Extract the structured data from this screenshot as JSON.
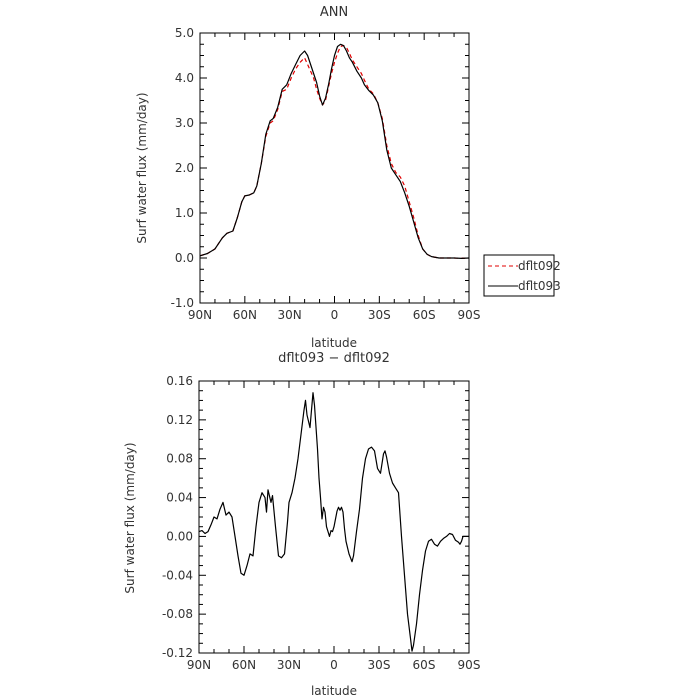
{
  "chart_data": [
    {
      "type": "line",
      "title": "ANN",
      "xlabel": "latitude",
      "ylabel": "Surf water flux (mm/day)",
      "xlim": [
        90,
        -90
      ],
      "ylim": [
        -1.0,
        5.0
      ],
      "x_ticks": [
        90,
        60,
        30,
        0,
        -30,
        -60,
        -90
      ],
      "x_tick_labels": [
        "90N",
        "60N",
        "30N",
        "0",
        "30S",
        "60S",
        "90S"
      ],
      "y_ticks": [
        -1.0,
        0.0,
        1.0,
        2.0,
        3.0,
        4.0,
        5.0
      ],
      "y_tick_labels": [
        "-1.0",
        "0.0",
        "1.0",
        "2.0",
        "3.0",
        "4.0",
        "5.0"
      ],
      "legend_position": "right",
      "series": [
        {
          "name": "dflt092",
          "color": "#e00000",
          "dash": "dashed",
          "points": [
            [
              90,
              0.05
            ],
            [
              85,
              0.1
            ],
            [
              80,
              0.2
            ],
            [
              75,
              0.45
            ],
            [
              72,
              0.55
            ],
            [
              68,
              0.6
            ],
            [
              65,
              0.9
            ],
            [
              62,
              1.25
            ],
            [
              60,
              1.38
            ],
            [
              57,
              1.4
            ],
            [
              54,
              1.45
            ],
            [
              52,
              1.6
            ],
            [
              49,
              2.1
            ],
            [
              46,
              2.7
            ],
            [
              43,
              3.0
            ],
            [
              41,
              3.05
            ],
            [
              38,
              3.3
            ],
            [
              35,
              3.7
            ],
            [
              32,
              3.75
            ],
            [
              29,
              4.0
            ],
            [
              26,
              4.2
            ],
            [
              23,
              4.35
            ],
            [
              20,
              4.45
            ],
            [
              18,
              4.3
            ],
            [
              16,
              4.15
            ],
            [
              14,
              4.0
            ],
            [
              12,
              3.75
            ],
            [
              10,
              3.55
            ],
            [
              8,
              3.4
            ],
            [
              6,
              3.5
            ],
            [
              4,
              3.8
            ],
            [
              2,
              4.1
            ],
            [
              0,
              4.35
            ],
            [
              -2,
              4.55
            ],
            [
              -4,
              4.7
            ],
            [
              -6,
              4.72
            ],
            [
              -8,
              4.68
            ],
            [
              -10,
              4.55
            ],
            [
              -12,
              4.4
            ],
            [
              -15,
              4.25
            ],
            [
              -18,
              4.1
            ],
            [
              -20,
              3.95
            ],
            [
              -23,
              3.75
            ],
            [
              -26,
              3.65
            ],
            [
              -29,
              3.45
            ],
            [
              -32,
              3.1
            ],
            [
              -35,
              2.5
            ],
            [
              -38,
              2.1
            ],
            [
              -41,
              1.9
            ],
            [
              -44,
              1.8
            ],
            [
              -47,
              1.6
            ],
            [
              -50,
              1.25
            ],
            [
              -53,
              0.9
            ],
            [
              -56,
              0.5
            ],
            [
              -59,
              0.2
            ],
            [
              -62,
              0.08
            ],
            [
              -65,
              0.03
            ],
            [
              -70,
              0.0
            ],
            [
              -75,
              0.0
            ],
            [
              -80,
              0.0
            ],
            [
              -85,
              -0.01
            ],
            [
              -90,
              0.0
            ]
          ]
        },
        {
          "name": "dflt093",
          "color": "#000000",
          "dash": "solid",
          "points": [
            [
              90,
              0.05
            ],
            [
              85,
              0.1
            ],
            [
              80,
              0.2
            ],
            [
              75,
              0.45
            ],
            [
              72,
              0.55
            ],
            [
              68,
              0.6
            ],
            [
              65,
              0.9
            ],
            [
              62,
              1.25
            ],
            [
              60,
              1.38
            ],
            [
              57,
              1.4
            ],
            [
              54,
              1.45
            ],
            [
              52,
              1.6
            ],
            [
              49,
              2.1
            ],
            [
              46,
              2.75
            ],
            [
              43,
              3.05
            ],
            [
              41,
              3.1
            ],
            [
              38,
              3.35
            ],
            [
              35,
              3.75
            ],
            [
              32,
              3.85
            ],
            [
              29,
              4.1
            ],
            [
              26,
              4.3
            ],
            [
              23,
              4.5
            ],
            [
              20,
              4.6
            ],
            [
              18,
              4.5
            ],
            [
              16,
              4.3
            ],
            [
              14,
              4.1
            ],
            [
              12,
              3.9
            ],
            [
              10,
              3.6
            ],
            [
              8,
              3.4
            ],
            [
              6,
              3.55
            ],
            [
              4,
              3.85
            ],
            [
              2,
              4.2
            ],
            [
              0,
              4.5
            ],
            [
              -2,
              4.7
            ],
            [
              -4,
              4.75
            ],
            [
              -6,
              4.72
            ],
            [
              -8,
              4.6
            ],
            [
              -10,
              4.45
            ],
            [
              -12,
              4.35
            ],
            [
              -15,
              4.15
            ],
            [
              -18,
              4.0
            ],
            [
              -20,
              3.85
            ],
            [
              -23,
              3.72
            ],
            [
              -26,
              3.62
            ],
            [
              -29,
              3.45
            ],
            [
              -32,
              3.05
            ],
            [
              -35,
              2.4
            ],
            [
              -38,
              2.0
            ],
            [
              -41,
              1.85
            ],
            [
              -44,
              1.7
            ],
            [
              -47,
              1.45
            ],
            [
              -50,
              1.15
            ],
            [
              -53,
              0.8
            ],
            [
              -56,
              0.45
            ],
            [
              -59,
              0.2
            ],
            [
              -62,
              0.08
            ],
            [
              -65,
              0.03
            ],
            [
              -70,
              0.0
            ],
            [
              -75,
              0.0
            ],
            [
              -80,
              0.0
            ],
            [
              -85,
              -0.01
            ],
            [
              -90,
              0.0
            ]
          ]
        }
      ]
    },
    {
      "type": "line",
      "title": "dflt093 − dflt092",
      "xlabel": "latitude",
      "ylabel": "Surf water flux (mm/day)",
      "xlim": [
        90,
        -90
      ],
      "ylim": [
        -0.12,
        0.16
      ],
      "x_ticks": [
        90,
        60,
        30,
        0,
        -30,
        -60,
        -90
      ],
      "x_tick_labels": [
        "90N",
        "60N",
        "30N",
        "0",
        "30S",
        "60S",
        "90S"
      ],
      "y_ticks": [
        -0.12,
        -0.08,
        -0.04,
        0.0,
        0.04,
        0.08,
        0.12,
        0.16
      ],
      "y_tick_labels": [
        "-0.12",
        "-0.08",
        "-0.04",
        "0.00",
        "0.04",
        "0.08",
        "0.12",
        "0.16"
      ],
      "series": [
        {
          "color": "#000000",
          "dash": "solid",
          "points": [
            [
              90,
              0.005
            ],
            [
              88,
              0.006
            ],
            [
              86,
              0.003
            ],
            [
              84,
              0.005
            ],
            [
              82,
              0.012
            ],
            [
              80,
              0.02
            ],
            [
              78,
              0.018
            ],
            [
              76,
              0.028
            ],
            [
              74,
              0.035
            ],
            [
              72,
              0.022
            ],
            [
              70,
              0.025
            ],
            [
              68,
              0.02
            ],
            [
              66,
              0.0
            ],
            [
              64,
              -0.02
            ],
            [
              62,
              -0.038
            ],
            [
              60,
              -0.04
            ],
            [
              58,
              -0.03
            ],
            [
              56,
              -0.018
            ],
            [
              54,
              -0.02
            ],
            [
              52,
              0.01
            ],
            [
              50,
              0.035
            ],
            [
              48,
              0.045
            ],
            [
              46,
              0.04
            ],
            [
              45,
              0.025
            ],
            [
              44,
              0.048
            ],
            [
              42,
              0.035
            ],
            [
              41,
              0.042
            ],
            [
              39,
              0.01
            ],
            [
              37,
              -0.02
            ],
            [
              35,
              -0.022
            ],
            [
              33,
              -0.018
            ],
            [
              31,
              0.015
            ],
            [
              30,
              0.035
            ],
            [
              28,
              0.045
            ],
            [
              26,
              0.06
            ],
            [
              24,
              0.08
            ],
            [
              22,
              0.105
            ],
            [
              20,
              0.13
            ],
            [
              19,
              0.14
            ],
            [
              18,
              0.125
            ],
            [
              16,
              0.112
            ],
            [
              15,
              0.13
            ],
            [
              14,
              0.148
            ],
            [
              13,
              0.135
            ],
            [
              11,
              0.09
            ],
            [
              10,
              0.06
            ],
            [
              9,
              0.04
            ],
            [
              8,
              0.018
            ],
            [
              7,
              0.03
            ],
            [
              6,
              0.025
            ],
            [
              5,
              0.01
            ],
            [
              4,
              0.005
            ],
            [
              3,
              0.0
            ],
            [
              2,
              0.006
            ],
            [
              1,
              0.005
            ],
            [
              0,
              0.01
            ],
            [
              -2,
              0.026
            ],
            [
              -3,
              0.03
            ],
            [
              -4,
              0.027
            ],
            [
              -5,
              0.03
            ],
            [
              -6,
              0.025
            ],
            [
              -7,
              0.008
            ],
            [
              -8,
              -0.005
            ],
            [
              -10,
              -0.018
            ],
            [
              -12,
              -0.026
            ],
            [
              -13,
              -0.02
            ],
            [
              -15,
              0.005
            ],
            [
              -17,
              0.028
            ],
            [
              -19,
              0.06
            ],
            [
              -21,
              0.08
            ],
            [
              -23,
              0.09
            ],
            [
              -25,
              0.092
            ],
            [
              -27,
              0.088
            ],
            [
              -29,
              0.07
            ],
            [
              -31,
              0.065
            ],
            [
              -32,
              0.075
            ],
            [
              -33,
              0.085
            ],
            [
              -34,
              0.088
            ],
            [
              -35,
              0.082
            ],
            [
              -37,
              0.065
            ],
            [
              -39,
              0.055
            ],
            [
              -41,
              0.05
            ],
            [
              -43,
              0.045
            ],
            [
              -45,
              0.0
            ],
            [
              -47,
              -0.04
            ],
            [
              -49,
              -0.08
            ],
            [
              -51,
              -0.105
            ],
            [
              -52,
              -0.118
            ],
            [
              -53,
              -0.112
            ],
            [
              -55,
              -0.09
            ],
            [
              -57,
              -0.06
            ],
            [
              -59,
              -0.035
            ],
            [
              -61,
              -0.015
            ],
            [
              -63,
              -0.005
            ],
            [
              -65,
              -0.003
            ],
            [
              -67,
              -0.008
            ],
            [
              -69,
              -0.01
            ],
            [
              -71,
              -0.005
            ],
            [
              -73,
              -0.002
            ],
            [
              -75,
              0.0
            ],
            [
              -77,
              0.003
            ],
            [
              -79,
              0.002
            ],
            [
              -81,
              -0.004
            ],
            [
              -83,
              -0.006
            ],
            [
              -84,
              -0.008
            ],
            [
              -85,
              -0.005
            ],
            [
              -86,
              0.0
            ],
            [
              -88,
              0.0
            ],
            [
              -90,
              0.0
            ]
          ]
        }
      ]
    }
  ]
}
